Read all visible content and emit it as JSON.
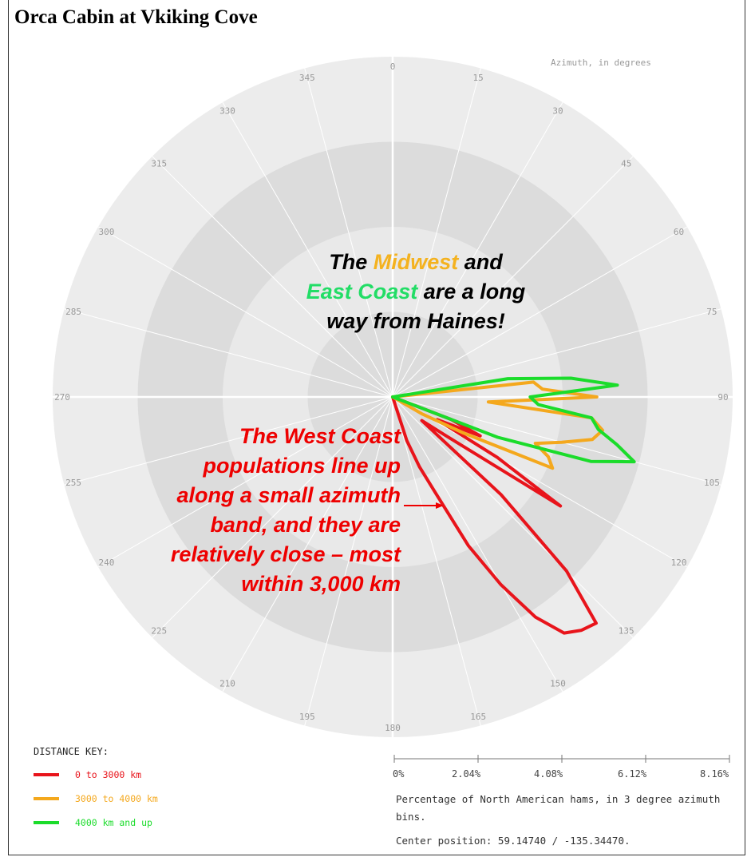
{
  "title": "Orca Cabin at Vkiking Cove",
  "azimuth_label": "Azimuth, in degrees",
  "annotations": {
    "top_parts": [
      "The ",
      "Midwest",
      " and ",
      "East Coast",
      " are a long way from Haines!"
    ],
    "west": "The West Coast populations line up along a small azimuth band, and they are relatively close – most within 3,000 km"
  },
  "distance_key": {
    "title": "DISTANCE KEY:",
    "items": [
      {
        "label": "0 to 3000 km",
        "color": "#e8141b"
      },
      {
        "label": "3000 to 4000 km",
        "color": "#f4a81d"
      },
      {
        "label": "4000 km and up",
        "color": "#1bdc2b"
      }
    ]
  },
  "scale_caption": "Percentage of North American hams, in 3 degree azimuth bins.",
  "center_position": "Center position: 59.14740 / -135.34470.",
  "colors": {
    "ring_outer": "#ececec",
    "ring_mid": "#dcdcdc",
    "ring_inner": "#e9e9e9",
    "ring_center": "#dcdcdc",
    "midwest": "#f4b21f",
    "east_coast": "#22dd66",
    "west": "#ee0000"
  },
  "chart_data": {
    "type": "polar",
    "axis": "azimuth",
    "angle_ticks": [
      0,
      15,
      30,
      45,
      60,
      75,
      90,
      105,
      120,
      135,
      150,
      165,
      180,
      195,
      210,
      225,
      240,
      255,
      270,
      285,
      300,
      315,
      330,
      345
    ],
    "radial_ticks": [
      "0%",
      "2.04%",
      "4.08%",
      "6.12%",
      "8.16%"
    ],
    "radial_max": 8.16,
    "series": [
      {
        "name": "0 to 3000 km",
        "color": "#e8141b",
        "points": [
          [
            111,
            1.5
          ],
          [
            114,
            2.3
          ],
          [
            117,
            1.2
          ],
          [
            120,
            2.9
          ],
          [
            123,
            4.8
          ],
          [
            126,
            1.6
          ],
          [
            129,
            0.9
          ],
          [
            132,
            3.5
          ],
          [
            135,
            5.9
          ],
          [
            138,
            7.3
          ],
          [
            141,
            7.2
          ],
          [
            144,
            7.0
          ],
          [
            147,
            6.3
          ],
          [
            150,
            5.2
          ],
          [
            153,
            4.0
          ],
          [
            156,
            2.5
          ],
          [
            159,
            1.8
          ],
          [
            162,
            1.1
          ]
        ]
      },
      {
        "name": "3000 to 4000 km",
        "color": "#f4a81d",
        "points": [
          [
            84,
            3.4
          ],
          [
            87,
            3.6
          ],
          [
            90,
            4.9
          ],
          [
            93,
            2.3
          ],
          [
            96,
            4.8
          ],
          [
            99,
            5.1
          ],
          [
            102,
            4.9
          ],
          [
            105,
            4.2
          ],
          [
            108,
            3.6
          ],
          [
            111,
            4.0
          ],
          [
            114,
            4.2
          ],
          [
            117,
            1.9
          ],
          [
            120,
            0.8
          ]
        ]
      },
      {
        "name": "4000 km and up",
        "color": "#1bdc2b",
        "points": [
          [
            81,
            2.8
          ],
          [
            84,
            4.3
          ],
          [
            87,
            5.4
          ],
          [
            90,
            3.3
          ],
          [
            93,
            3.5
          ],
          [
            96,
            4.8
          ],
          [
            99,
            5.0
          ],
          [
            102,
            5.5
          ],
          [
            105,
            6.0
          ],
          [
            108,
            5.0
          ],
          [
            111,
            2.7
          ]
        ]
      }
    ]
  }
}
